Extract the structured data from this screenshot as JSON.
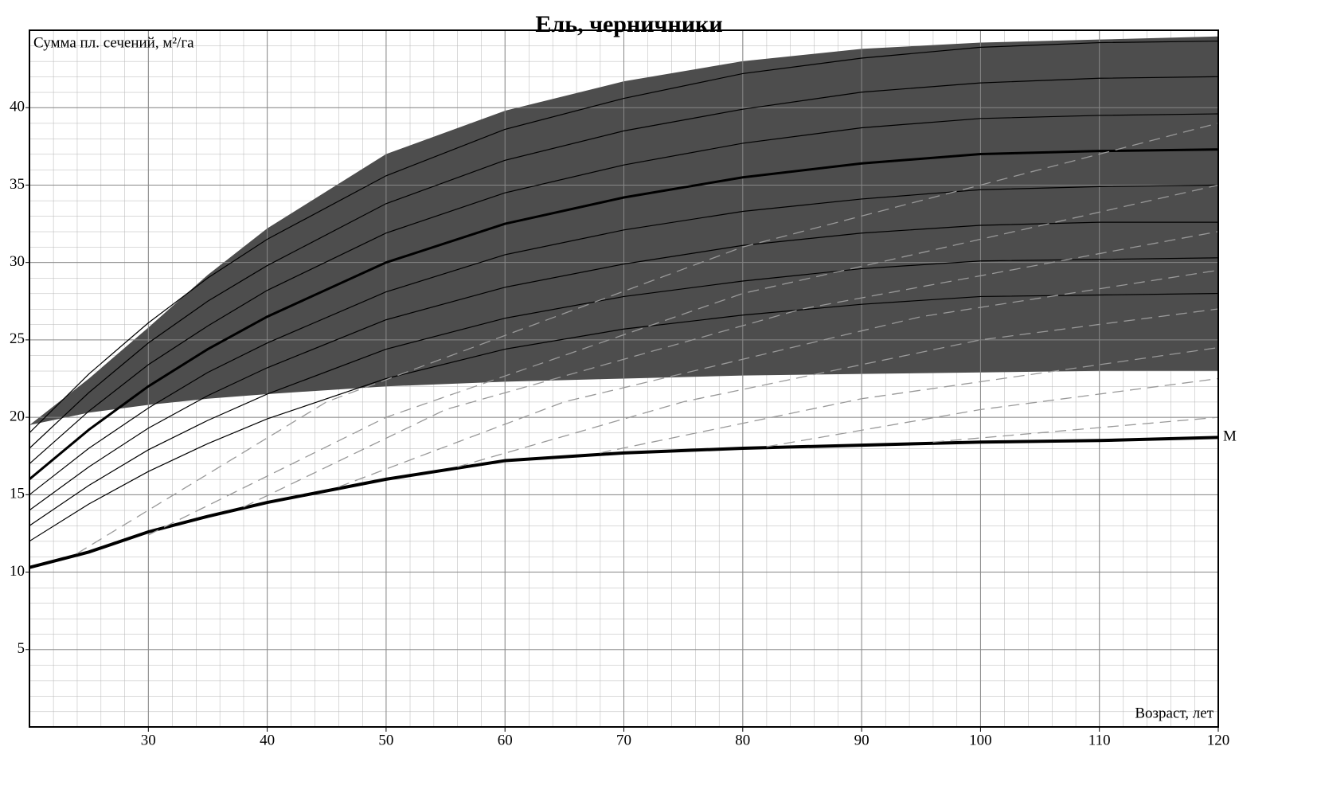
{
  "chart_data": {
    "type": "line",
    "title": "Ель, черничники",
    "ylabel": "Сумма пл. сечений, м²/га",
    "xlabel": "Возраст, лет",
    "xlim": [
      20,
      120
    ],
    "ylim": [
      0,
      45
    ],
    "xticks": [
      30,
      40,
      50,
      60,
      70,
      80,
      90,
      100,
      110,
      120
    ],
    "yticks": [
      5,
      10,
      15,
      20,
      25,
      30,
      35,
      40
    ],
    "grid": true,
    "band": {
      "color": "#4d4d4d",
      "x": [
        20,
        25,
        30,
        35,
        40,
        50,
        60,
        70,
        80,
        90,
        100,
        110,
        120
      ],
      "upper": [
        19.5,
        22.5,
        25.8,
        29.2,
        32.2,
        37,
        39.8,
        41.7,
        43,
        43.8,
        44.2,
        44.4,
        44.6
      ],
      "lower": [
        19.5,
        20.3,
        20.8,
        21.2,
        21.5,
        22,
        22.3,
        22.5,
        22.7,
        22.8,
        22.9,
        23,
        23
      ]
    },
    "series": [
      {
        "name": "М",
        "color": "#000000",
        "width": 4,
        "x": [
          20,
          25,
          30,
          35,
          40,
          50,
          60,
          70,
          80,
          90,
          100,
          110,
          120
        ],
        "values": [
          10.3,
          11.3,
          12.6,
          13.6,
          14.5,
          16,
          17.2,
          17.7,
          18,
          18.2,
          18.4,
          18.5,
          18.7
        ]
      },
      {
        "color": "#000000",
        "width": 3,
        "x": [
          20,
          25,
          30,
          35,
          40,
          50,
          60,
          70,
          80,
          90,
          100,
          110,
          120
        ],
        "values": [
          16,
          19.2,
          22,
          24.4,
          26.5,
          30,
          32.5,
          34.2,
          35.5,
          36.4,
          37,
          37.2,
          37.3
        ]
      },
      {
        "color": "#000000",
        "width": 1.2,
        "x": [
          20,
          25,
          30,
          35,
          40,
          50,
          60,
          70,
          80,
          90,
          100,
          110,
          120
        ],
        "values": [
          19,
          22.8,
          26.1,
          29,
          31.5,
          35.6,
          38.6,
          40.6,
          42.2,
          43.2,
          43.9,
          44.2,
          44.3
        ]
      },
      {
        "color": "#000000",
        "width": 1.2,
        "x": [
          20,
          25,
          30,
          35,
          40,
          50,
          60,
          70,
          80,
          90,
          100,
          110,
          120
        ],
        "values": [
          18,
          21.6,
          24.8,
          27.5,
          29.8,
          33.8,
          36.6,
          38.5,
          39.9,
          41,
          41.6,
          41.9,
          42
        ]
      },
      {
        "color": "#000000",
        "width": 1.2,
        "x": [
          20,
          25,
          30,
          35,
          40,
          50,
          60,
          70,
          80,
          90,
          100,
          110,
          120
        ],
        "values": [
          17,
          20.4,
          23.4,
          25.9,
          28.2,
          31.9,
          34.5,
          36.3,
          37.7,
          38.7,
          39.3,
          39.5,
          39.6
        ]
      },
      {
        "color": "#000000",
        "width": 1.2,
        "x": [
          20,
          25,
          30,
          35,
          40,
          50,
          60,
          70,
          80,
          90,
          100,
          110,
          120
        ],
        "values": [
          15,
          18,
          20.6,
          22.9,
          24.8,
          28.1,
          30.5,
          32.1,
          33.3,
          34.1,
          34.7,
          34.9,
          35
        ]
      },
      {
        "color": "#000000",
        "width": 1.2,
        "x": [
          20,
          25,
          30,
          35,
          40,
          50,
          60,
          70,
          80,
          90,
          100,
          110,
          120
        ],
        "values": [
          14,
          16.8,
          19.3,
          21.4,
          23.2,
          26.3,
          28.4,
          29.9,
          31.1,
          31.9,
          32.4,
          32.6,
          32.6
        ]
      },
      {
        "color": "#000000",
        "width": 1.2,
        "x": [
          20,
          25,
          30,
          35,
          40,
          50,
          60,
          70,
          80,
          90,
          100,
          110,
          120
        ],
        "values": [
          13,
          15.6,
          17.9,
          19.8,
          21.5,
          24.4,
          26.4,
          27.8,
          28.8,
          29.6,
          30.1,
          30.2,
          30.3
        ]
      },
      {
        "color": "#000000",
        "width": 1.2,
        "x": [
          20,
          25,
          30,
          35,
          40,
          50,
          60,
          70,
          80,
          90,
          100,
          110,
          120
        ],
        "values": [
          12,
          14.4,
          16.5,
          18.3,
          19.9,
          22.5,
          24.4,
          25.7,
          26.6,
          27.3,
          27.8,
          27.9,
          28
        ]
      },
      {
        "color": "#999999",
        "width": 1.3,
        "dashed": true,
        "x": [
          24,
          45,
          80,
          120
        ],
        "values": [
          11.2,
          21,
          31,
          39
        ]
      },
      {
        "color": "#999999",
        "width": 1.3,
        "dashed": true,
        "x": [
          30,
          50,
          80,
          120
        ],
        "values": [
          12.4,
          20,
          28,
          35
        ]
      },
      {
        "color": "#999999",
        "width": 1.3,
        "dashed": true,
        "x": [
          38,
          55,
          85,
          120
        ],
        "values": [
          14.2,
          20.5,
          27,
          32
        ]
      },
      {
        "color": "#999999",
        "width": 1.3,
        "dashed": true,
        "x": [
          46,
          65,
          95,
          120
        ],
        "values": [
          15.5,
          21,
          26.5,
          29.5
        ]
      },
      {
        "color": "#999999",
        "width": 1.3,
        "dashed": true,
        "x": [
          56,
          75,
          100,
          120
        ],
        "values": [
          16.8,
          21,
          25,
          27
        ]
      },
      {
        "color": "#999999",
        "width": 1.3,
        "dashed": true,
        "x": [
          68,
          90,
          120
        ],
        "values": [
          17.7,
          21.2,
          24.5
        ]
      },
      {
        "color": "#999999",
        "width": 1.3,
        "dashed": true,
        "x": [
          82,
          100,
          120
        ],
        "values": [
          18.1,
          20.5,
          22.5
        ]
      },
      {
        "color": "#999999",
        "width": 1.3,
        "dashed": true,
        "x": [
          96,
          120
        ],
        "values": [
          18.4,
          20
        ]
      }
    ]
  }
}
